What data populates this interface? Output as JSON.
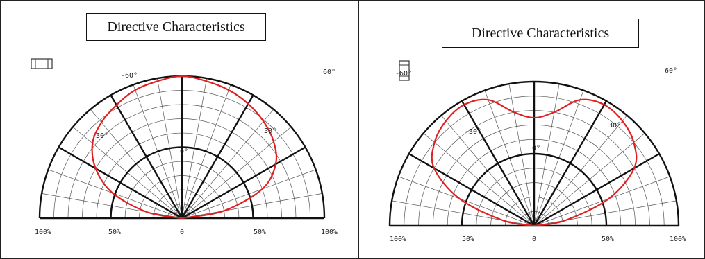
{
  "chart_data": [
    {
      "type": "polar",
      "title": "Directive Characteristics",
      "angle_labels": [
        "-60°",
        "-30°",
        "0°",
        "30°",
        "60°"
      ],
      "radial_labels": [
        "100%",
        "50%",
        "0",
        "50%",
        "100%"
      ],
      "angle_range_deg": [
        -90,
        90
      ],
      "icon": "led-package-horizontal-icon",
      "series": [
        {
          "color": "#e02020",
          "angles_deg": [
            -90,
            -80,
            -70,
            -60,
            -50,
            -40,
            -30,
            -20,
            -10,
            0,
            10,
            20,
            30,
            40,
            50,
            60,
            70,
            80,
            90
          ],
          "values": [
            0.0,
            0.25,
            0.52,
            0.7,
            0.82,
            0.88,
            0.92,
            0.96,
            0.98,
            1.0,
            0.98,
            0.96,
            0.93,
            0.89,
            0.84,
            0.76,
            0.6,
            0.3,
            0.0
          ]
        }
      ]
    },
    {
      "type": "polar",
      "title": "Directive Characteristics",
      "angle_labels": [
        "-60°",
        "-30°",
        "0°",
        "30°",
        "60°"
      ],
      "radial_labels": [
        "100%",
        "50%",
        "0",
        "50%",
        "100%"
      ],
      "angle_range_deg": [
        -90,
        90
      ],
      "icon": "led-package-vertical-icon",
      "series": [
        {
          "color": "#e02020",
          "angles_deg": [
            -90,
            -80,
            -70,
            -60,
            -50,
            -40,
            -30,
            -20,
            -10,
            0,
            10,
            20,
            30,
            40,
            50,
            60,
            70,
            80,
            90
          ],
          "values": [
            0.0,
            0.22,
            0.55,
            0.8,
            0.9,
            0.95,
            0.97,
            0.93,
            0.8,
            0.75,
            0.8,
            0.93,
            0.97,
            0.95,
            0.9,
            0.8,
            0.55,
            0.22,
            0.0
          ]
        }
      ]
    }
  ]
}
